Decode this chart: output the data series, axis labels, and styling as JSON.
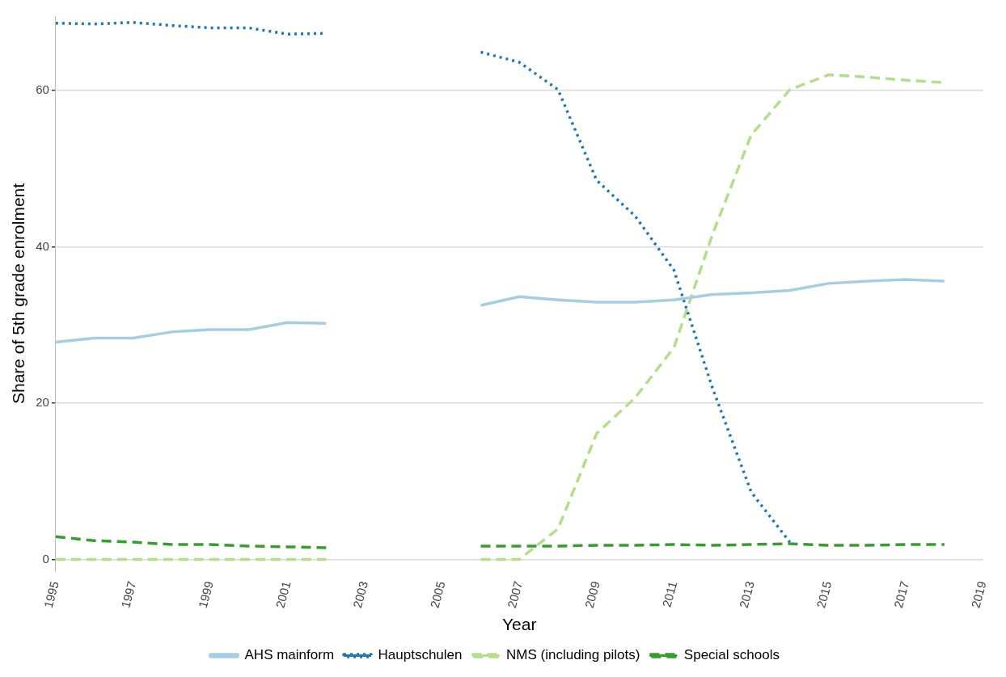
{
  "chart_data": {
    "type": "line",
    "xlabel": "Year",
    "ylabel": "Share of 5th grade enrolment",
    "x": [
      1995,
      1996,
      1997,
      1998,
      1999,
      2000,
      2001,
      2002,
      2003,
      2004,
      2005,
      2006,
      2007,
      2008,
      2009,
      2010,
      2011,
      2012,
      2013,
      2014,
      2015,
      2016,
      2017,
      2018
    ],
    "series": [
      {
        "name": "AHS mainform",
        "color": "#a6cee3",
        "line_style": "solid",
        "values": [
          27.8,
          28.3,
          28.3,
          29.1,
          29.4,
          29.4,
          30.3,
          30.2,
          null,
          null,
          null,
          32.5,
          33.6,
          33.2,
          32.9,
          32.9,
          33.2,
          33.9,
          34.1,
          34.4,
          35.3,
          35.6,
          35.8,
          35.6
        ]
      },
      {
        "name": "Hauptschulen",
        "color": "#1f78b4",
        "line_style": "dotted",
        "values": [
          68.6,
          68.5,
          68.7,
          68.3,
          68.0,
          68.0,
          67.2,
          67.3,
          null,
          null,
          null,
          64.9,
          63.6,
          60.1,
          48.5,
          43.9,
          37.0,
          21.9,
          8.6,
          2.2,
          null,
          null,
          null,
          null
        ]
      },
      {
        "name": "NMS (including pilots)",
        "color": "#b2df8a",
        "line_style": "dashed",
        "values": [
          0,
          0,
          0,
          0,
          0,
          0,
          0,
          0,
          null,
          null,
          null,
          0,
          0,
          3.9,
          16.1,
          20.7,
          27.1,
          41.6,
          54.3,
          60.1,
          62.0,
          61.7,
          61.3,
          61.0
        ]
      },
      {
        "name": "Special schools",
        "color": "#33a02c",
        "line_style": "dashed",
        "values": [
          2.9,
          2.4,
          2.2,
          1.9,
          1.9,
          1.7,
          1.6,
          1.5,
          null,
          null,
          null,
          1.7,
          1.7,
          1.7,
          1.8,
          1.8,
          1.9,
          1.8,
          1.9,
          2.0,
          1.8,
          1.8,
          1.9,
          1.9
        ]
      }
    ],
    "xlim": [
      1995,
      2019
    ],
    "xticks": [
      1995,
      1997,
      1999,
      2001,
      2003,
      2005,
      2007,
      2009,
      2011,
      2013,
      2015,
      2017,
      2019
    ],
    "ylim": [
      -1.5,
      69.5
    ],
    "yticks": [
      0,
      20,
      40,
      60
    ],
    "grid": "y",
    "legend": "bottom",
    "marker": "none"
  }
}
